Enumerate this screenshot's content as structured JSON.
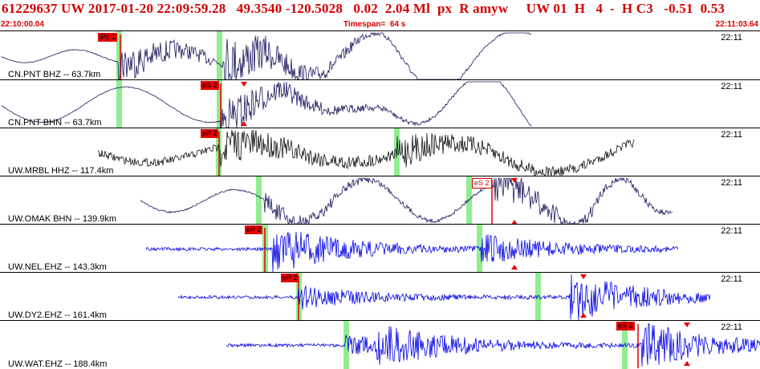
{
  "header": {
    "text": "61229637 UW 2017-01-20 22:09:59.28   49.3540 -120.5028   0.02  2.04 Ml  px  R amyw     UW 01  H   4  -  H C3   -0.51  0.53"
  },
  "timebar": {
    "start": "22:10:00.04",
    "span": "Timespan=  64 s",
    "end": "22:11:03.64"
  },
  "colors": {
    "header_text": "#d40000",
    "dark_trace": "#1a1a5e",
    "blue_trace": "#0000e6",
    "pick_flag": "#e60000",
    "green_marker": "#90ee90"
  },
  "traces": [
    {
      "label": "CN.PNT BHZ -- 63.7km",
      "time": "22:11",
      "color": "#1a1a5e",
      "picks": [
        {
          "text": "iPc 1"
        }
      ]
    },
    {
      "label": "CN.PNT BHN -- 63.7km",
      "time": "22:11",
      "color": "#1a1a5e",
      "picks": [
        {
          "text": "eS 2"
        }
      ]
    },
    {
      "label": "UW.MRBL HHZ -- 117.4km",
      "time": "22:11",
      "color": "#111111",
      "picks": [
        {
          "text": "eP 2"
        }
      ]
    },
    {
      "label": "UW.OMAK BHN -- 139.9km",
      "time": "22:11",
      "color": "#1a1a5e",
      "picks": [
        {
          "text": "eS 2"
        }
      ]
    },
    {
      "label": "UW.NEL.EHZ -- 143.3km",
      "time": "22:11",
      "color": "#0000e6",
      "picks": [
        {
          "text": "eP 2"
        }
      ]
    },
    {
      "label": "UW.DY2.EHZ -- 161.4km",
      "time": "22:11",
      "color": "#0000e6",
      "picks": [
        {
          "text": "eP 2"
        }
      ]
    },
    {
      "label": "UW.WAT.EHZ -- 188.4km",
      "time": "22:11",
      "color": "#0000e6",
      "picks": [
        {
          "text": "eS 2"
        }
      ]
    }
  ]
}
